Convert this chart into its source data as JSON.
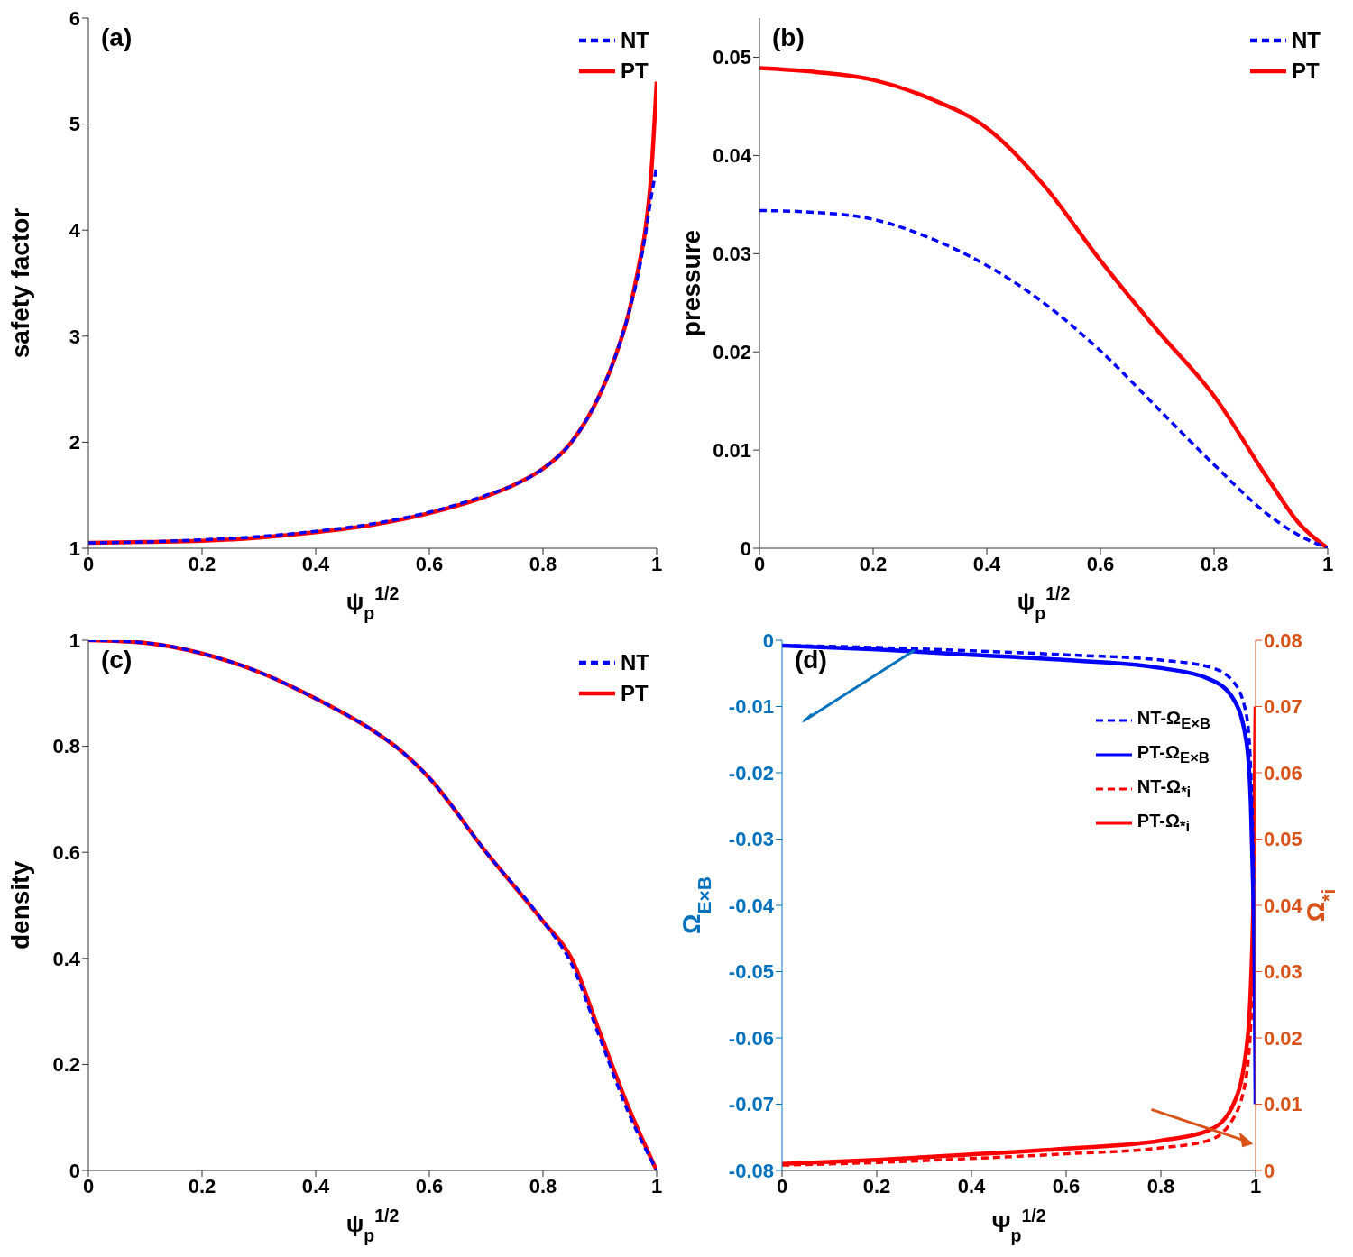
{
  "chart_data": [
    {
      "type": "line",
      "annotations": [
        "(a)"
      ],
      "xlabel": "ψ$_{p}$$^{1/2}$",
      "ylabel": "safety factor",
      "xlim": [
        0,
        1
      ],
      "xticks": [
        0,
        0.2,
        0.4,
        0.6,
        0.8,
        1
      ],
      "ylim": [
        1,
        6
      ],
      "yticks": [
        1,
        2,
        3,
        4,
        5,
        6
      ],
      "legend": "top right",
      "series": [
        {
          "name": "NT",
          "color": "#0000ff",
          "line_style": "dashed",
          "x": [
            0,
            0.1,
            0.2,
            0.3,
            0.4,
            0.5,
            0.6,
            0.7,
            0.75,
            0.8,
            0.85,
            0.9,
            0.93,
            0.95,
            0.97,
            0.98,
            0.99,
            1
          ],
          "values": [
            1.05,
            1.06,
            1.08,
            1.11,
            1.16,
            1.23,
            1.34,
            1.5,
            1.6,
            1.75,
            2.0,
            2.45,
            2.85,
            3.2,
            3.65,
            3.95,
            4.3,
            4.6
          ]
        },
        {
          "name": "PT",
          "color": "#ff0000",
          "line_style": "solid",
          "x": [
            0,
            0.1,
            0.2,
            0.3,
            0.4,
            0.5,
            0.6,
            0.7,
            0.75,
            0.8,
            0.85,
            0.9,
            0.93,
            0.95,
            0.97,
            0.98,
            0.99,
            1
          ],
          "values": [
            1.05,
            1.06,
            1.07,
            1.1,
            1.15,
            1.22,
            1.33,
            1.49,
            1.6,
            1.75,
            2.0,
            2.45,
            2.85,
            3.2,
            3.7,
            4.0,
            4.5,
            5.4
          ]
        }
      ]
    },
    {
      "type": "line",
      "annotations": [
        "(b)"
      ],
      "xlabel": "ψ$_{p}$$^{1/2}$",
      "ylabel": "pressure",
      "xlim": [
        0,
        1
      ],
      "xticks": [
        0,
        0.2,
        0.4,
        0.6,
        0.8,
        1
      ],
      "ylim": [
        0,
        0.054
      ],
      "yticks": [
        0,
        0.01,
        0.02,
        0.03,
        0.04,
        0.05
      ],
      "legend": "top right",
      "series": [
        {
          "name": "NT",
          "color": "#0000ff",
          "line_style": "dashed",
          "x": [
            0,
            0.1,
            0.2,
            0.3,
            0.4,
            0.5,
            0.6,
            0.7,
            0.8,
            0.9,
            0.95,
            1
          ],
          "values": [
            0.0344,
            0.0342,
            0.0335,
            0.0316,
            0.0288,
            0.025,
            0.0201,
            0.0143,
            0.0085,
            0.0032,
            0.0013,
            0
          ]
        },
        {
          "name": "PT",
          "color": "#ff0000",
          "line_style": "solid",
          "x": [
            0,
            0.1,
            0.2,
            0.3,
            0.4,
            0.5,
            0.6,
            0.7,
            0.8,
            0.9,
            0.95,
            1
          ],
          "values": [
            0.0489,
            0.0485,
            0.0477,
            0.0458,
            0.0428,
            0.037,
            0.0293,
            0.0222,
            0.0155,
            0.0066,
            0.0025,
            0
          ]
        }
      ]
    },
    {
      "type": "line",
      "annotations": [
        "(c)"
      ],
      "xlabel": "ψ$_{p}$$^{1/2}$",
      "ylabel": "density",
      "xlim": [
        0,
        1
      ],
      "xticks": [
        0,
        0.2,
        0.4,
        0.6,
        0.8,
        1
      ],
      "ylim": [
        0,
        1
      ],
      "yticks": [
        0,
        0.2,
        0.4,
        0.6,
        0.8,
        1
      ],
      "legend": "top right",
      "series": [
        {
          "name": "NT",
          "color": "#0000ff",
          "line_style": "dashed",
          "x": [
            0,
            0.1,
            0.2,
            0.3,
            0.4,
            0.5,
            0.54,
            0.6,
            0.7,
            0.8,
            0.85,
            0.9,
            0.95,
            1
          ],
          "values": [
            1,
            0.995,
            0.975,
            0.94,
            0.89,
            0.83,
            0.8,
            0.74,
            0.6,
            0.47,
            0.39,
            0.25,
            0.11,
            0
          ]
        },
        {
          "name": "PT",
          "color": "#ff0000",
          "line_style": "solid",
          "x": [
            0,
            0.1,
            0.2,
            0.3,
            0.4,
            0.5,
            0.54,
            0.6,
            0.7,
            0.8,
            0.85,
            0.9,
            0.95,
            1
          ],
          "values": [
            1,
            0.995,
            0.975,
            0.94,
            0.89,
            0.83,
            0.8,
            0.74,
            0.6,
            0.47,
            0.4,
            0.26,
            0.12,
            0
          ]
        }
      ]
    },
    {
      "type": "line",
      "annotations": [
        "(d)"
      ],
      "xlabel": "Ψ$_{p}$$^{1/2}$",
      "ylabel": "Ω$_{E×B}$",
      "y2label": "Ω$_{*i}$",
      "xlim": [
        0,
        1
      ],
      "xticks": [
        0,
        0.2,
        0.4,
        0.6,
        0.8,
        1
      ],
      "ylim": [
        -0.08,
        0
      ],
      "yticks": [
        -0.08,
        -0.07,
        -0.06,
        -0.05,
        -0.04,
        -0.03,
        -0.02,
        -0.01,
        0
      ],
      "y2lim": [
        0,
        0.08
      ],
      "y2ticks": [
        0,
        0.01,
        0.02,
        0.03,
        0.04,
        0.05,
        0.06,
        0.07,
        0.08
      ],
      "legend": "right",
      "series": [
        {
          "name": "NT-Ω$_{E×B}$",
          "color": "#0000ff",
          "line_style": "dashed",
          "x": [
            0,
            0.2,
            0.4,
            0.6,
            0.8,
            0.9,
            0.95,
            0.98,
            0.99,
            0.995,
            1
          ],
          "values": [
            -0.0008,
            -0.0011,
            -0.0016,
            -0.0022,
            -0.003,
            -0.004,
            -0.006,
            -0.011,
            -0.02,
            -0.032,
            -0.042
          ]
        },
        {
          "name": "PT-Ω$_{E×B}$",
          "color": "#0000ff",
          "line_style": "solid",
          "x": [
            0,
            0.2,
            0.4,
            0.6,
            0.8,
            0.9,
            0.95,
            0.98,
            0.99,
            0.995,
            0.998,
            1
          ],
          "values": [
            -0.0008,
            -0.0014,
            -0.0022,
            -0.003,
            -0.0042,
            -0.0058,
            -0.0085,
            -0.015,
            -0.025,
            -0.038,
            -0.05,
            -0.07
          ]
        },
        {
          "name": "NT-Ω$_{*i}$",
          "color": "#ff0000",
          "line_style": "dashed",
          "axis": "y2",
          "x": [
            0,
            0.2,
            0.4,
            0.6,
            0.8,
            0.9,
            0.95,
            0.98,
            0.99,
            0.995,
            1
          ],
          "values": [
            0.0008,
            0.0012,
            0.0018,
            0.0025,
            0.0034,
            0.0045,
            0.0075,
            0.014,
            0.022,
            0.03,
            0.04
          ]
        },
        {
          "name": "PT-Ω$_{*i}$",
          "color": "#ff0000",
          "line_style": "solid",
          "axis": "y2",
          "x": [
            0,
            0.2,
            0.4,
            0.6,
            0.8,
            0.9,
            0.95,
            0.98,
            0.99,
            0.995,
            0.998,
            1
          ],
          "values": [
            0.001,
            0.0016,
            0.0024,
            0.0033,
            0.0045,
            0.006,
            0.0095,
            0.018,
            0.028,
            0.04,
            0.055,
            0.07
          ]
        }
      ]
    }
  ]
}
